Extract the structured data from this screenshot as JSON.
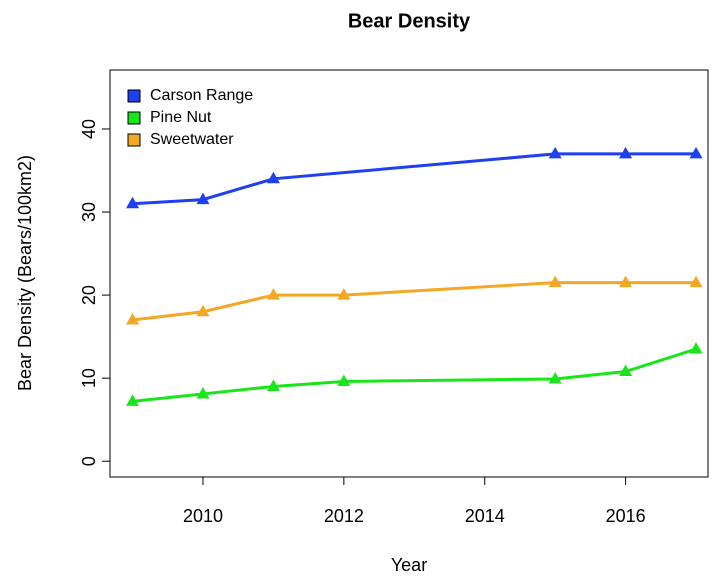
{
  "chart_data": {
    "type": "line",
    "title": "Bear Density",
    "xlabel": "Year",
    "ylabel": "Bear Density (Bears/100km2)",
    "series": [
      {
        "name": "Carson Range",
        "color": "#1f3ff0",
        "x": [
          2009,
          2010,
          2011,
          2015,
          2016,
          2017
        ],
        "values": [
          31,
          31.5,
          34,
          37,
          37,
          37
        ]
      },
      {
        "name": "Pine Nut",
        "color": "#19e619",
        "x": [
          2009,
          2010,
          2011,
          2012,
          2015,
          2016,
          2017
        ],
        "values": [
          7.2,
          8.1,
          9,
          9.6,
          9.9,
          10.8,
          13.5
        ]
      },
      {
        "name": "Sweetwater",
        "color": "#f5a623",
        "x": [
          2009,
          2010,
          2011,
          2012,
          2015,
          2016,
          2017
        ],
        "values": [
          17,
          18,
          20,
          20,
          21.5,
          21.5,
          21.5
        ]
      }
    ],
    "xlim": [
      2008.68,
      2017.17
    ],
    "xticks": [
      2010,
      2012,
      2014,
      2016
    ],
    "ylim": [
      -1.9,
      47.1
    ],
    "yticks": [
      0,
      10,
      20,
      30,
      40
    ],
    "legend": "top-left"
  }
}
